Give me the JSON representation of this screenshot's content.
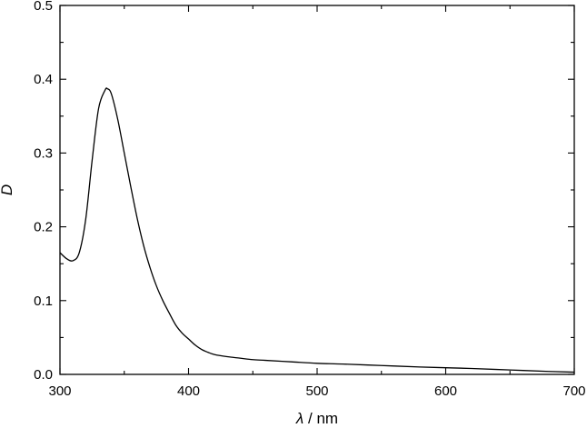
{
  "chart_data": {
    "type": "line",
    "title": "",
    "xlabel_symbol": "λ",
    "xlabel_unit": " / nm",
    "ylabel": "D",
    "xlim": [
      300,
      700
    ],
    "ylim": [
      0,
      0.5
    ],
    "x_ticks": [
      "300",
      "400",
      "500",
      "600",
      "700"
    ],
    "y_ticks": [
      "0.0",
      "0.1",
      "0.2",
      "0.3",
      "0.4",
      "0.5"
    ],
    "grid": false,
    "legend": "none",
    "series": [
      {
        "line_color": "#000000",
        "x": [
          300,
          305,
          310,
          315,
          320,
          325,
          330,
          335,
          337,
          340,
          345,
          350,
          355,
          360,
          365,
          370,
          375,
          380,
          385,
          390,
          395,
          400,
          405,
          410,
          415,
          420,
          430,
          440,
          450,
          460,
          480,
          500,
          520,
          550,
          580,
          600,
          620,
          650,
          680,
          700
        ],
        "y": [
          0.165,
          0.157,
          0.154,
          0.165,
          0.21,
          0.29,
          0.36,
          0.385,
          0.387,
          0.38,
          0.345,
          0.3,
          0.255,
          0.212,
          0.175,
          0.145,
          0.12,
          0.1,
          0.083,
          0.067,
          0.056,
          0.048,
          0.04,
          0.034,
          0.03,
          0.027,
          0.024,
          0.022,
          0.02,
          0.019,
          0.017,
          0.015,
          0.014,
          0.012,
          0.01,
          0.009,
          0.008,
          0.006,
          0.004,
          0.003
        ]
      }
    ]
  }
}
